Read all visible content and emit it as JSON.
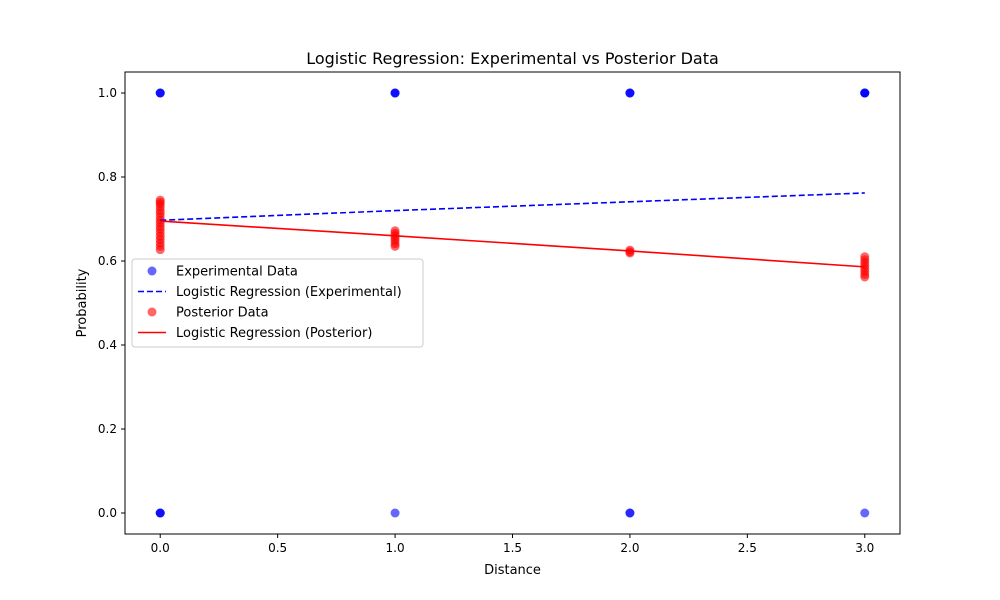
{
  "chart_data": {
    "type": "scatter",
    "title": "Logistic Regression: Experimental vs Posterior Data",
    "xlabel": "Distance",
    "ylabel": "Probability",
    "xlim": [
      -0.15,
      3.15
    ],
    "ylim": [
      -0.05,
      1.05
    ],
    "xticks": [
      0.0,
      0.5,
      1.0,
      1.5,
      2.0,
      2.5,
      3.0
    ],
    "xtick_labels": [
      "0.0",
      "0.5",
      "1.0",
      "1.5",
      "2.0",
      "2.5",
      "3.0"
    ],
    "yticks": [
      0.0,
      0.2,
      0.4,
      0.6,
      0.8,
      1.0
    ],
    "ytick_labels": [
      "0.0",
      "0.2",
      "0.4",
      "0.6",
      "0.8",
      "1.0"
    ],
    "grid": false,
    "legend_position": "center-left",
    "series": [
      {
        "name": "Experimental Data",
        "kind": "scatter",
        "color": "#0000ff",
        "opacity": 0.6,
        "points": [
          [
            0,
            1.0
          ],
          [
            0,
            1.0
          ],
          [
            0,
            1.0
          ],
          [
            0,
            0.0
          ],
          [
            0,
            0.0
          ],
          [
            0,
            0.0
          ],
          [
            1,
            1.0
          ],
          [
            1,
            1.0
          ],
          [
            1,
            1.0
          ],
          [
            1,
            0.0
          ],
          [
            2,
            1.0
          ],
          [
            2,
            1.0
          ],
          [
            2,
            1.0
          ],
          [
            2,
            0.0
          ],
          [
            2,
            0.0
          ],
          [
            3,
            1.0
          ],
          [
            3,
            1.0
          ],
          [
            3,
            1.0
          ],
          [
            3,
            1.0
          ],
          [
            3,
            0.0
          ]
        ]
      },
      {
        "name": "Logistic Regression (Experimental)",
        "kind": "line",
        "color": "#0000ff",
        "dashed": true,
        "points": [
          [
            0,
            0.697
          ],
          [
            1,
            0.72
          ],
          [
            2,
            0.741
          ],
          [
            3,
            0.762
          ]
        ]
      },
      {
        "name": "Posterior Data",
        "kind": "scatter",
        "color": "#ff0000",
        "opacity": 0.6,
        "points": [
          [
            0,
            0.745
          ],
          [
            0,
            0.74
          ],
          [
            0,
            0.735
          ],
          [
            0,
            0.728
          ],
          [
            0,
            0.72
          ],
          [
            0,
            0.713
          ],
          [
            0,
            0.705
          ],
          [
            0,
            0.697
          ],
          [
            0,
            0.69
          ],
          [
            0,
            0.682
          ],
          [
            0,
            0.675
          ],
          [
            0,
            0.667
          ],
          [
            0,
            0.659
          ],
          [
            0,
            0.651
          ],
          [
            0,
            0.643
          ],
          [
            0,
            0.635
          ],
          [
            0,
            0.627
          ],
          [
            1,
            0.672
          ],
          [
            1,
            0.666
          ],
          [
            1,
            0.66
          ],
          [
            1,
            0.654
          ],
          [
            1,
            0.648
          ],
          [
            1,
            0.641
          ],
          [
            1,
            0.635
          ],
          [
            2,
            0.626
          ],
          [
            2,
            0.622
          ],
          [
            2,
            0.619
          ],
          [
            3,
            0.61
          ],
          [
            3,
            0.603
          ],
          [
            3,
            0.596
          ],
          [
            3,
            0.589
          ],
          [
            3,
            0.582
          ],
          [
            3,
            0.575
          ],
          [
            3,
            0.568
          ],
          [
            3,
            0.562
          ]
        ]
      },
      {
        "name": "Logistic Regression (Posterior)",
        "kind": "line",
        "color": "#ff0000",
        "dashed": false,
        "points": [
          [
            0,
            0.695
          ],
          [
            1,
            0.66
          ],
          [
            2,
            0.624
          ],
          [
            3,
            0.586
          ]
        ]
      }
    ]
  }
}
